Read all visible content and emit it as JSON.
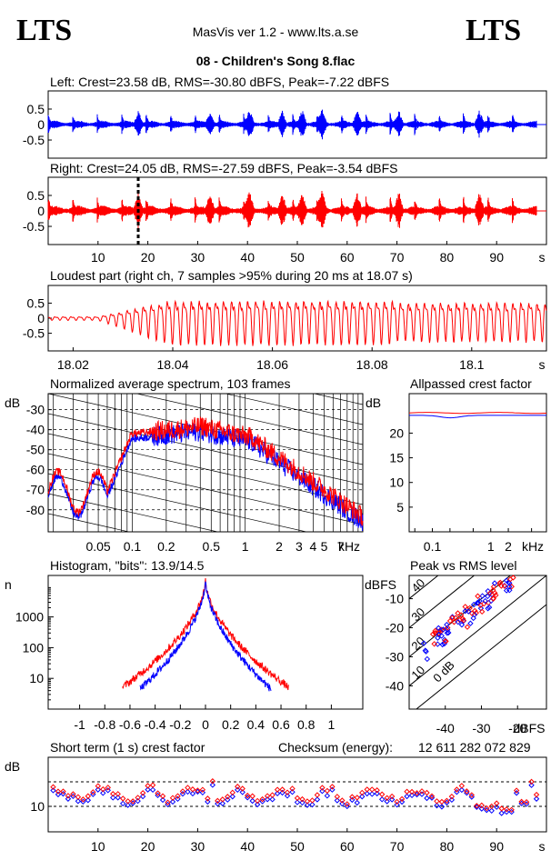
{
  "header": {
    "brand_left": "LTS",
    "brand_right": "LTS",
    "app_title": "MasVis ver 1.2 - www.lts.a.se",
    "file_title": "08 - Children's Song 8.flac"
  },
  "colors": {
    "left": "#0000ff",
    "right": "#ff0000",
    "axis": "#000000"
  },
  "chart_data": [
    {
      "id": "left_waveform",
      "type": "line",
      "title": "Left: Crest=23.58 dB, RMS=-30.80 dBFS, Peak=-7.22 dBFS",
      "series": [
        {
          "color": "#0000ff"
        }
      ],
      "xlim": [
        0,
        100
      ],
      "ylim": [
        -1,
        1
      ],
      "yticks": [
        "0.5",
        "0",
        "-0.5"
      ],
      "xticks": []
    },
    {
      "id": "right_waveform",
      "type": "line",
      "title": "Right: Crest=24.05 dB, RMS=-27.59 dBFS, Peak=-3.54 dBFS",
      "series": [
        {
          "color": "#ff0000"
        }
      ],
      "xlim": [
        0,
        100
      ],
      "ylim": [
        -1,
        1
      ],
      "yticks": [
        "0.5",
        "0",
        "-0.5"
      ],
      "xticks": [
        "10",
        "20",
        "30",
        "40",
        "50",
        "60",
        "70",
        "80",
        "90"
      ],
      "xunit": "s",
      "marker_x": 18.07
    },
    {
      "id": "loudest_part",
      "type": "line",
      "title": "Loudest part (right ch, 7 samples >95% during 20 ms at 18.07 s)",
      "series": [
        {
          "color": "#ff0000"
        }
      ],
      "xlim": [
        18.015,
        18.115
      ],
      "ylim": [
        -1,
        1
      ],
      "yticks": [
        "0.5",
        "0",
        "-0.5"
      ],
      "xticks": [
        "18.02",
        "18.04",
        "18.06",
        "18.08",
        "18.1"
      ],
      "xunit": "s"
    },
    {
      "id": "spectrum",
      "type": "line",
      "title": "Normalized average spectrum, 103 frames",
      "ylabel": "dB",
      "yticks": [
        "-30",
        "-40",
        "-50",
        "-60",
        "-70",
        "-80"
      ],
      "xticks": [
        "0.05",
        "0.1",
        "0.2",
        "0.5",
        "1",
        "2",
        "3",
        "4",
        "5",
        "7"
      ],
      "xunit": "kHz",
      "xscale": "log",
      "series": [
        {
          "color": "#0000ff"
        },
        {
          "color": "#ff0000"
        }
      ]
    },
    {
      "id": "allpassed_crest",
      "type": "line",
      "title": "Allpassed crest factor",
      "ylabel": "dB",
      "yticks": [
        "20",
        "15",
        "10",
        "5"
      ],
      "xticks": [
        "0.1",
        "1",
        "2"
      ],
      "xunit": "kHz",
      "xscale": "log",
      "series": [
        {
          "color": "#0000ff"
        },
        {
          "color": "#ff0000"
        }
      ]
    },
    {
      "id": "histogram",
      "type": "line",
      "title": "Histogram, \"bits\": 13.9/14.5",
      "ylabel": "n",
      "yscale": "log",
      "yticks": [
        "1000",
        "100",
        "10"
      ],
      "xticks": [
        "-1",
        "-0.8",
        "-0.6",
        "-0.4",
        "-0.2",
        "0",
        "0.2",
        "0.4",
        "0.6",
        "0.8",
        "1"
      ],
      "series": [
        {
          "color": "#0000ff"
        },
        {
          "color": "#ff0000"
        }
      ]
    },
    {
      "id": "peak_vs_rms",
      "type": "scatter",
      "title": "Peak vs RMS level",
      "ylabel": "dBFS",
      "yticks": [
        "-10",
        "-20",
        "-30",
        "-40"
      ],
      "xticks": [
        "-40",
        "-30",
        "-20"
      ],
      "xunit": "dBFS",
      "diag_labels": [
        "40",
        "30",
        "20",
        "10",
        "0 dB"
      ],
      "series": [
        {
          "color": "#0000ff"
        },
        {
          "color": "#ff0000"
        }
      ]
    },
    {
      "id": "short_term_crest",
      "type": "scatter",
      "title": "Short term (1 s) crest factor",
      "ylabel": "dB",
      "yticks": [
        "10"
      ],
      "xticks": [
        "10",
        "20",
        "30",
        "40",
        "50",
        "60",
        "70",
        "80",
        "90"
      ],
      "xunit": "s",
      "series": [
        {
          "color": "#0000ff"
        },
        {
          "color": "#ff0000"
        }
      ]
    }
  ],
  "checksum": {
    "label": "Checksum (energy):",
    "value": "12 611 282 072 829"
  }
}
